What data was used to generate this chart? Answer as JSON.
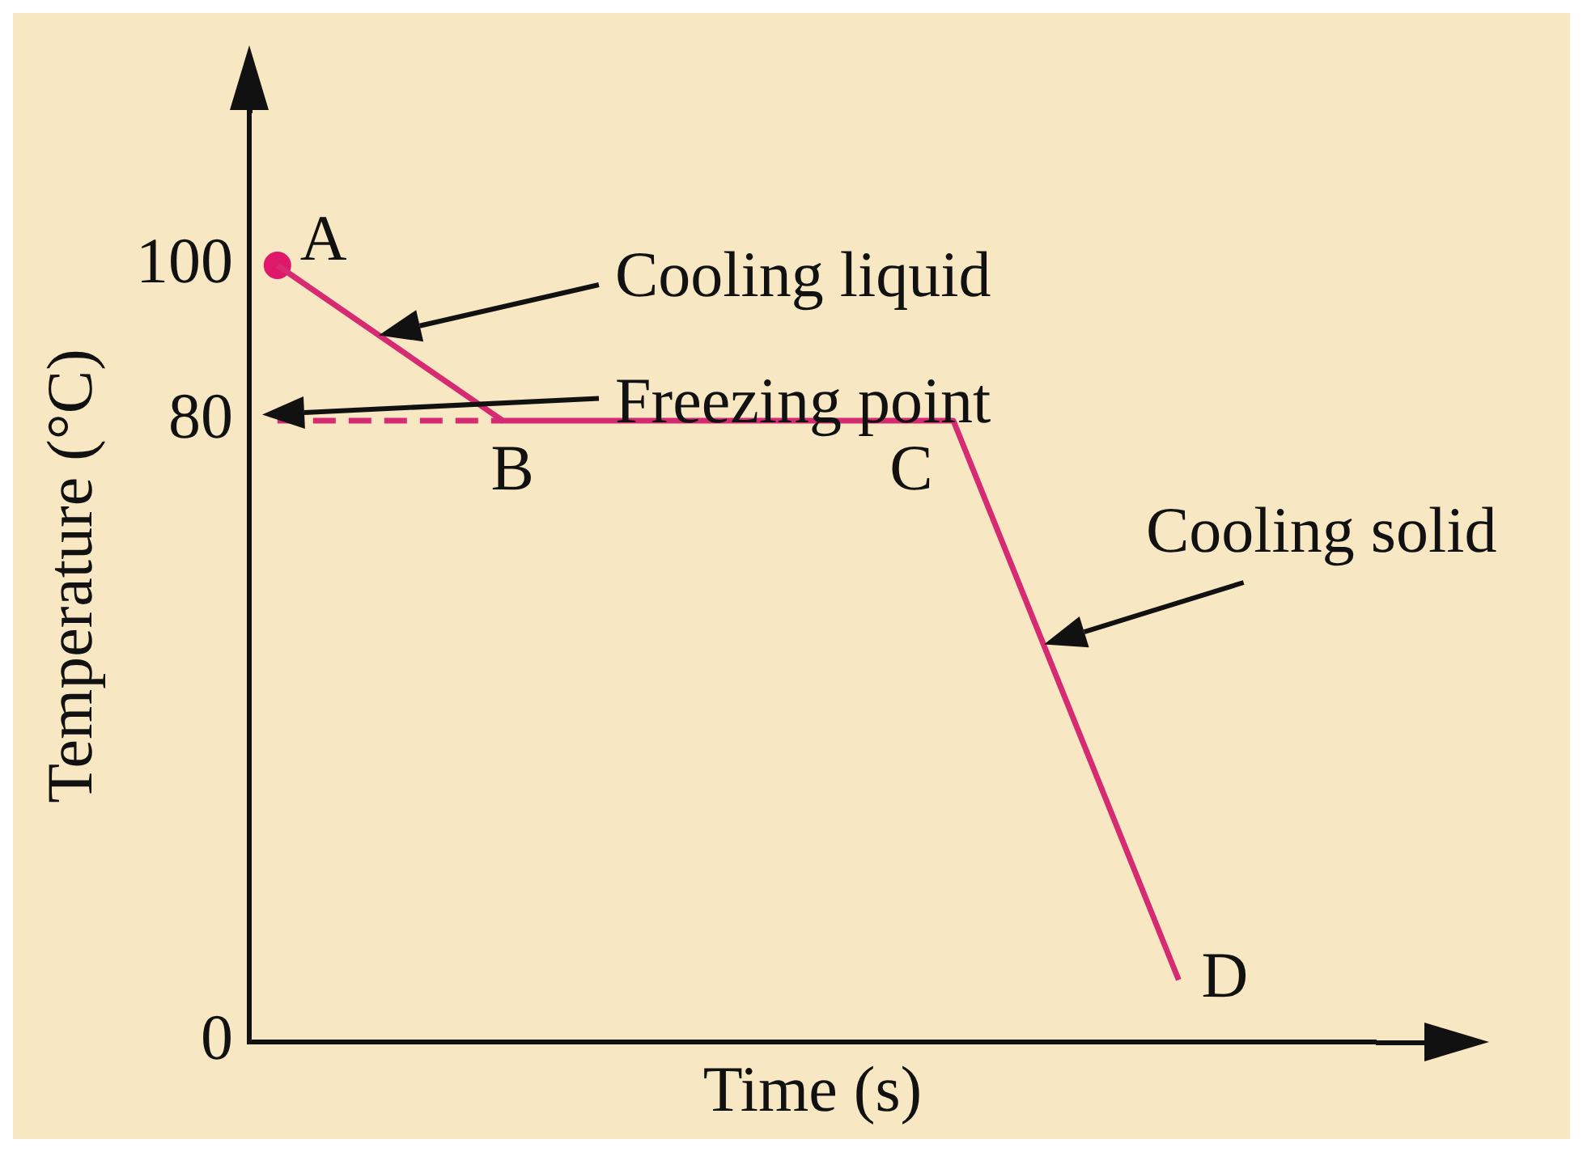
{
  "chart_data": {
    "type": "line",
    "xlabel": "Time (s)",
    "ylabel": "Temperature (°C)",
    "categories": [
      null,
      null,
      null,
      null,
      null,
      null,
      null,
      null,
      null,
      null,
      null,
      null,
      null,
      null,
      null,
      null,
      null,
      null,
      null,
      null
    ],
    "series": [
      {
        "color": "#d62a72",
        "values": [
          100,
          null,
          null,
          null,
          80,
          null,
          null,
          null,
          null,
          null,
          null,
          null,
          80,
          null,
          null,
          null,
          8,
          null,
          null,
          null
        ],
        "value_labels": [
          "A",
          null,
          null,
          null,
          "B",
          null,
          null,
          null,
          null,
          null,
          null,
          null,
          "C",
          null,
          null,
          null,
          "D",
          null,
          null,
          null
        ],
        "line_style": "solid",
        "marker": "none"
      },
      {
        "color": "#d62a72",
        "values": [
          80,
          null,
          null,
          null,
          80,
          null,
          null,
          null,
          null,
          null,
          null,
          null,
          null,
          null,
          null,
          null,
          null,
          null,
          null,
          null
        ],
        "line_style": "dashed",
        "marker": "none"
      },
      {
        "type": "scatter",
        "color": "#e0186a",
        "values": [
          100,
          null,
          null,
          null,
          null,
          null,
          null,
          null,
          null,
          null,
          null,
          null,
          null,
          null,
          null,
          null,
          null,
          null,
          null,
          null
        ],
        "marker": "circle"
      }
    ],
    "ylim": [
      0,
      120
    ],
    "yticks": [
      0,
      80,
      100
    ],
    "grid": false,
    "legend": false,
    "tick_labels": "y",
    "annotations": [
      "Cooling liquid",
      "Freezing point",
      "Cooling solid"
    ]
  }
}
